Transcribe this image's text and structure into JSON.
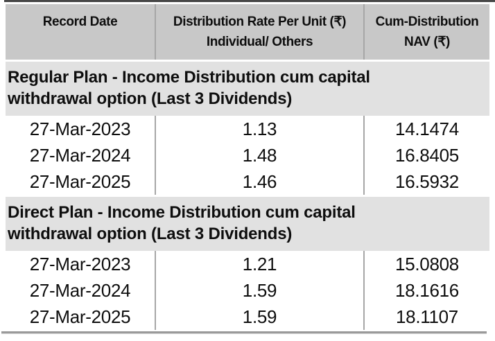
{
  "table": {
    "columns": [
      {
        "label": "Record Date",
        "sub": ""
      },
      {
        "label": "Distribution Rate Per Unit (₹)",
        "sub": "Individual/ Others"
      },
      {
        "label": "Cum-Distribution",
        "sub": "NAV (₹)"
      }
    ],
    "sections": [
      {
        "title": "Regular Plan - Income Distribution cum capital withdrawal option (Last 3 Dividends)",
        "rows": [
          {
            "record_date": "27-Mar-2023",
            "rate": "1.13",
            "nav": "14.1474"
          },
          {
            "record_date": "27-Mar-2024",
            "rate": "1.48",
            "nav": "16.8405"
          },
          {
            "record_date": "27-Mar-2025",
            "rate": "1.46",
            "nav": "16.5932"
          }
        ]
      },
      {
        "title": "Direct Plan - Income Distribution cum capital withdrawal option (Last 3 Dividends)",
        "rows": [
          {
            "record_date": "27-Mar-2023",
            "rate": "1.21",
            "nav": "15.0808"
          },
          {
            "record_date": "27-Mar-2024",
            "rate": "1.59",
            "nav": "18.1616"
          },
          {
            "record_date": "27-Mar-2025",
            "rate": "1.59",
            "nav": "18.1107"
          }
        ]
      }
    ],
    "colors": {
      "header_bg": "#c8c8c8",
      "section_bg": "#e1e1e1",
      "row_bg": "#ffffff",
      "column_separator": "#a6a6a6",
      "top_rule": "#474747",
      "bottom_rule": "#9a9a9a",
      "text": "#0e0e0e"
    }
  }
}
